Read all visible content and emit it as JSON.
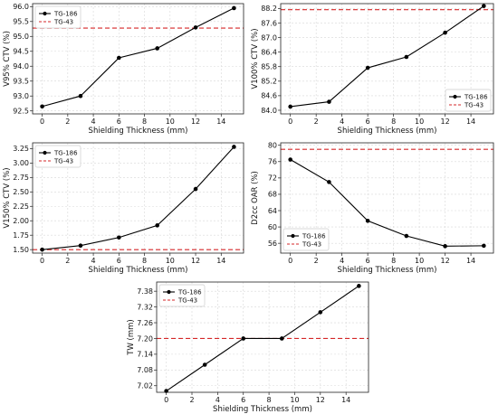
{
  "chart_data": [
    {
      "type": "line",
      "xlabel": "Shielding Thickness (mm)",
      "ylabel": "V95% CTV (%)",
      "x": [
        0,
        3,
        6,
        9,
        12,
        15
      ],
      "xticks": [
        0,
        2,
        4,
        6,
        8,
        10,
        12,
        14
      ],
      "yticks": [
        92.5,
        93.0,
        93.5,
        94.0,
        94.5,
        95.0,
        95.5,
        96.0
      ],
      "xlim": [
        -0.75,
        15.75
      ],
      "ylim": [
        92.4,
        96.1
      ],
      "series": [
        {
          "name": "TG-186",
          "values": [
            92.65,
            93.0,
            94.28,
            94.6,
            95.3,
            95.95
          ],
          "color": "#000000",
          "marker": "circle"
        }
      ],
      "reference": {
        "name": "TG-43",
        "value": 95.28,
        "color": "#d62728",
        "style": "dashed"
      },
      "legend": "top-left",
      "grid": true
    },
    {
      "type": "line",
      "xlabel": "Shielding Thickness (mm)",
      "ylabel": "V100% CTV (%)",
      "x": [
        0,
        3,
        6,
        9,
        12,
        15
      ],
      "xticks": [
        0,
        2,
        4,
        6,
        8,
        10,
        12,
        14
      ],
      "yticks": [
        84.0,
        84.6,
        85.2,
        85.8,
        86.4,
        87.0,
        87.6,
        88.2
      ],
      "xlim": [
        -0.75,
        15.75
      ],
      "ylim": [
        83.85,
        88.4
      ],
      "series": [
        {
          "name": "TG-186",
          "values": [
            84.15,
            84.35,
            85.75,
            86.2,
            87.2,
            88.3
          ],
          "color": "#000000",
          "marker": "circle"
        }
      ],
      "reference": {
        "name": "TG-43",
        "value": 88.15,
        "color": "#d62728",
        "style": "dashed"
      },
      "legend": "bottom-right",
      "grid": true
    },
    {
      "type": "line",
      "xlabel": "Shielding Thickness (mm)",
      "ylabel": "V150% CTV (%)",
      "x": [
        0,
        3,
        6,
        9,
        12,
        15
      ],
      "xticks": [
        0,
        2,
        4,
        6,
        8,
        10,
        12,
        14
      ],
      "yticks": [
        1.5,
        1.75,
        2.0,
        2.25,
        2.5,
        2.75,
        3.0,
        3.25
      ],
      "xlim": [
        -0.75,
        15.75
      ],
      "ylim": [
        1.44,
        3.35
      ],
      "series": [
        {
          "name": "TG-186",
          "values": [
            1.5,
            1.57,
            1.71,
            1.92,
            2.55,
            3.28
          ],
          "color": "#000000",
          "marker": "circle"
        }
      ],
      "reference": {
        "name": "TG-43",
        "value": 1.5,
        "color": "#d62728",
        "style": "dashed"
      },
      "legend": "top-left",
      "grid": true
    },
    {
      "type": "line",
      "xlabel": "Shielding Thickness (mm)",
      "ylabel": "D2cc OAR (%)",
      "x": [
        0,
        3,
        6,
        9,
        12,
        15
      ],
      "xticks": [
        0,
        2,
        4,
        6,
        8,
        10,
        12,
        14
      ],
      "yticks": [
        56,
        60,
        64,
        68,
        72,
        76,
        80
      ],
      "xlim": [
        -0.75,
        15.75
      ],
      "ylim": [
        53.6,
        80.6
      ],
      "series": [
        {
          "name": "TG-186",
          "values": [
            76.5,
            71.0,
            61.5,
            57.8,
            55.3,
            55.4
          ],
          "color": "#000000",
          "marker": "circle"
        }
      ],
      "reference": {
        "name": "TG-43",
        "value": 79.0,
        "color": "#d62728",
        "style": "dashed"
      },
      "legend": "bottom-left",
      "grid": true
    },
    {
      "type": "line",
      "xlabel": "Shielding Thickness (mm)",
      "ylabel": "TW (mm)",
      "x": [
        0,
        3,
        6,
        9,
        12,
        15
      ],
      "xticks": [
        0,
        2,
        4,
        6,
        8,
        10,
        12,
        14
      ],
      "yticks": [
        7.02,
        7.08,
        7.14,
        7.2,
        7.26,
        7.32,
        7.38
      ],
      "xlim": [
        -0.75,
        15.75
      ],
      "ylim": [
        6.995,
        7.415
      ],
      "ytick_decimals": 2,
      "series": [
        {
          "name": "TG-186",
          "values": [
            7.0,
            7.1,
            7.2,
            7.2,
            7.3,
            7.4
          ],
          "color": "#000000",
          "marker": "circle"
        }
      ],
      "reference": {
        "name": "TG-43",
        "value": 7.2,
        "color": "#d62728",
        "style": "dashed"
      },
      "legend": "top-left",
      "grid": true
    }
  ]
}
